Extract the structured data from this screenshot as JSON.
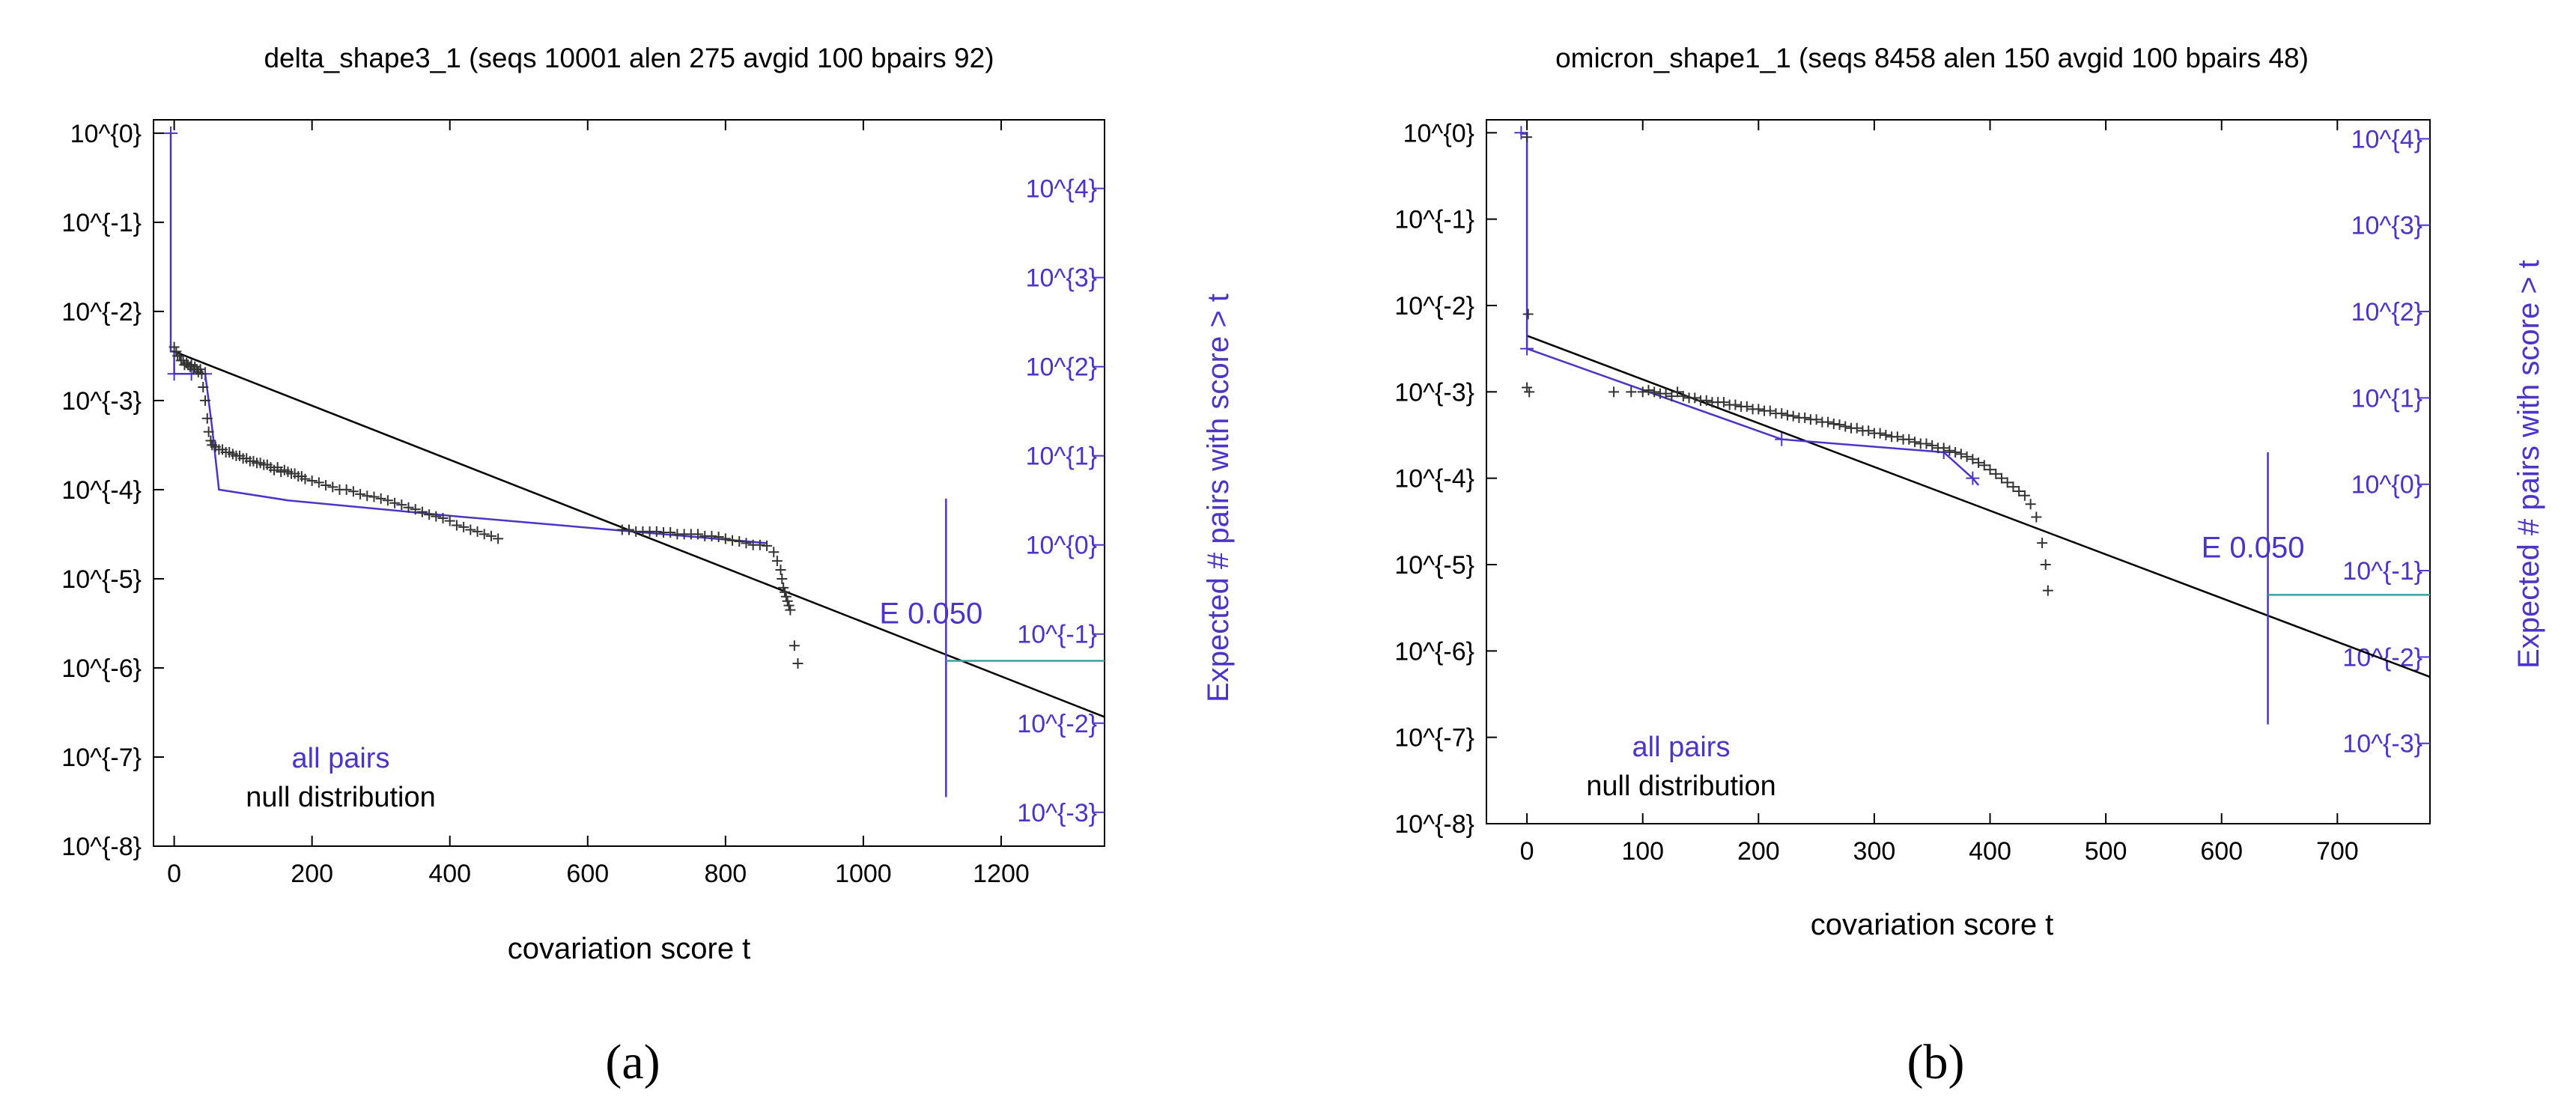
{
  "chart_data": [
    {
      "type": "scatter",
      "panel": "(a)",
      "title": "delta_shape3_1 (seqs 10001 alen 275 avgid 100 bpairs 92)",
      "xlabel": "covariation score t",
      "ylabel_right": "Expected # pairs with score > t",
      "xlim": [
        -30,
        1350
      ],
      "ylim_exp": [
        -8,
        0.15
      ],
      "x_ticks": [
        {
          "value": 0,
          "label": "0"
        },
        {
          "value": 200,
          "label": "200"
        },
        {
          "value": 400,
          "label": "400"
        },
        {
          "value": 600,
          "label": "600"
        },
        {
          "value": 800,
          "label": "800"
        },
        {
          "value": 1000,
          "label": "1000"
        },
        {
          "value": 1200,
          "label": "1200"
        }
      ],
      "y_ticks_left": [
        {
          "value": 0,
          "label": "10^{0}"
        },
        {
          "value": -1,
          "label": "10^{-1}"
        },
        {
          "value": -2,
          "label": "10^{-2}"
        },
        {
          "value": -3,
          "label": "10^{-3}"
        },
        {
          "value": -4,
          "label": "10^{-4}"
        },
        {
          "value": -5,
          "label": "10^{-5}"
        },
        {
          "value": -6,
          "label": "10^{-6}"
        },
        {
          "value": -7,
          "label": "10^{-7}"
        },
        {
          "value": -8,
          "label": "10^{-8}"
        }
      ],
      "y_ticks_right": [
        {
          "value": -0.62,
          "label": "10^{4}"
        },
        {
          "value": -1.62,
          "label": "10^{3}"
        },
        {
          "value": -2.62,
          "label": "10^{2}"
        },
        {
          "value": -3.62,
          "label": "10^{1}"
        },
        {
          "value": -4.62,
          "label": "10^{0}"
        },
        {
          "value": -5.62,
          "label": "10^{-1}"
        },
        {
          "value": -6.62,
          "label": "10^{-2}"
        },
        {
          "value": -7.62,
          "label": "10^{-3}"
        }
      ],
      "legend": {
        "all": "all pairs",
        "null": "null distribution"
      },
      "null_fit_line": {
        "x": [
          0,
          1350
        ],
        "y": [
          -2.45,
          -6.55
        ]
      },
      "all_pairs_curve": {
        "x": [
          -5,
          -5,
          0,
          0,
          15,
          35,
          45,
          55,
          65,
          165,
          410,
          860
        ],
        "y": [
          0,
          -2.45,
          -2.45,
          -2.7,
          -2.7,
          -2.7,
          -2.7,
          -3.3,
          -4.0,
          -4.12,
          -4.3,
          -4.6
        ]
      },
      "all_pairs_marks": {
        "x": [
          -5,
          0,
          25,
          45
        ],
        "y": [
          0,
          -2.7,
          -2.7,
          -2.7
        ]
      },
      "null_points": {
        "x": [
          0,
          3,
          5,
          8,
          10,
          13,
          15,
          18,
          20,
          23,
          25,
          28,
          30,
          33,
          35,
          38,
          40,
          42,
          45,
          48,
          50,
          53,
          55,
          60,
          65,
          70,
          75,
          80,
          85,
          90,
          95,
          100,
          105,
          110,
          115,
          120,
          125,
          130,
          135,
          140,
          145,
          150,
          155,
          160,
          165,
          170,
          175,
          180,
          185,
          190,
          200,
          210,
          220,
          230,
          240,
          250,
          260,
          270,
          280,
          290,
          300,
          310,
          320,
          330,
          340,
          350,
          360,
          370,
          380,
          390,
          400,
          410,
          420,
          430,
          440,
          450,
          460,
          470,
          650,
          660,
          670,
          680,
          690,
          700,
          710,
          720,
          730,
          740,
          750,
          760,
          770,
          780,
          790,
          800,
          810,
          820,
          830,
          840,
          850,
          860,
          870,
          875,
          880,
          882,
          884,
          886,
          888,
          890,
          892,
          894,
          900,
          905
        ],
        "y": [
          -2.4,
          -2.45,
          -2.5,
          -2.5,
          -2.55,
          -2.55,
          -2.6,
          -2.58,
          -2.6,
          -2.62,
          -2.6,
          -2.65,
          -2.62,
          -2.65,
          -2.68,
          -2.65,
          -2.7,
          -2.85,
          -3.0,
          -3.2,
          -3.35,
          -3.45,
          -3.5,
          -3.52,
          -3.55,
          -3.55,
          -3.58,
          -3.58,
          -3.6,
          -3.62,
          -3.62,
          -3.65,
          -3.65,
          -3.68,
          -3.68,
          -3.7,
          -3.7,
          -3.72,
          -3.72,
          -3.75,
          -3.78,
          -3.75,
          -3.8,
          -3.78,
          -3.8,
          -3.82,
          -3.82,
          -3.85,
          -3.85,
          -3.88,
          -3.9,
          -3.92,
          -3.95,
          -3.97,
          -4.0,
          -4.0,
          -4.02,
          -4.05,
          -4.07,
          -4.08,
          -4.1,
          -4.12,
          -4.15,
          -4.17,
          -4.2,
          -4.22,
          -4.25,
          -4.28,
          -4.3,
          -4.32,
          -4.35,
          -4.4,
          -4.42,
          -4.45,
          -4.47,
          -4.5,
          -4.52,
          -4.55,
          -4.45,
          -4.45,
          -4.47,
          -4.47,
          -4.47,
          -4.47,
          -4.48,
          -4.48,
          -4.5,
          -4.5,
          -4.5,
          -4.5,
          -4.52,
          -4.52,
          -4.53,
          -4.55,
          -4.57,
          -4.58,
          -4.6,
          -4.62,
          -4.62,
          -4.63,
          -4.7,
          -4.8,
          -4.9,
          -5.0,
          -5.1,
          -5.15,
          -5.2,
          -5.25,
          -5.3,
          -5.35,
          -5.75,
          -5.95
        ]
      },
      "threshold": {
        "label": "E 0.050",
        "x": 1120,
        "y": -5.92,
        "y_span": [
          -4.1,
          -7.45
        ]
      }
    },
    {
      "type": "scatter",
      "panel": "(b)",
      "title": "omicron_shape1_1 (seqs 8458 alen 150 avgid 100 bpairs 48)",
      "xlabel": "covariation score t",
      "ylabel_right": "Expected # pairs with score > t",
      "xlim": [
        -35,
        780
      ],
      "ylim_exp": [
        -8,
        0.15
      ],
      "x_ticks": [
        {
          "value": 0,
          "label": "0"
        },
        {
          "value": 100,
          "label": "100"
        },
        {
          "value": 200,
          "label": "200"
        },
        {
          "value": 300,
          "label": "300"
        },
        {
          "value": 400,
          "label": "400"
        },
        {
          "value": 500,
          "label": "500"
        },
        {
          "value": 600,
          "label": "600"
        },
        {
          "value": 700,
          "label": "700"
        }
      ],
      "y_ticks_left": [
        {
          "value": 0,
          "label": "10^{0}"
        },
        {
          "value": -1,
          "label": "10^{-1}"
        },
        {
          "value": -2,
          "label": "10^{-2}"
        },
        {
          "value": -3,
          "label": "10^{-3}"
        },
        {
          "value": -4,
          "label": "10^{-4}"
        },
        {
          "value": -5,
          "label": "10^{-5}"
        },
        {
          "value": -6,
          "label": "10^{-6}"
        },
        {
          "value": -7,
          "label": "10^{-7}"
        },
        {
          "value": -8,
          "label": "10^{-8}"
        }
      ],
      "y_ticks_right": [
        {
          "value": -0.07,
          "label": "10^{4}"
        },
        {
          "value": -1.07,
          "label": "10^{3}"
        },
        {
          "value": -2.07,
          "label": "10^{2}"
        },
        {
          "value": -3.07,
          "label": "10^{1}"
        },
        {
          "value": -4.07,
          "label": "10^{0}"
        },
        {
          "value": -5.07,
          "label": "10^{-1}"
        },
        {
          "value": -6.07,
          "label": "10^{-2}"
        },
        {
          "value": -7.07,
          "label": "10^{-3}"
        }
      ],
      "legend": {
        "all": "all pairs",
        "null": "null distribution"
      },
      "null_fit_line": {
        "x": [
          0,
          780
        ],
        "y": [
          -2.35,
          -6.3
        ]
      },
      "all_pairs_curve": {
        "x": [
          -5,
          -5,
          0,
          0,
          220,
          360,
          385,
          390
        ],
        "y": [
          0,
          -0.01,
          -0.01,
          -2.5,
          -3.55,
          -3.7,
          -4.0,
          -4.08
        ]
      },
      "all_pairs_marks": {
        "x": [
          -5,
          0,
          220,
          360,
          385
        ],
        "y": [
          0,
          -2.5,
          -3.55,
          -3.7,
          -4.0
        ]
      },
      "null_points": {
        "x": [
          0,
          1,
          0,
          2,
          75,
          90,
          100,
          105,
          110,
          115,
          120,
          125,
          130,
          135,
          140,
          145,
          150,
          155,
          160,
          165,
          170,
          175,
          180,
          185,
          190,
          195,
          200,
          205,
          210,
          215,
          220,
          225,
          230,
          235,
          240,
          245,
          250,
          255,
          260,
          265,
          270,
          275,
          280,
          285,
          290,
          295,
          300,
          305,
          310,
          315,
          320,
          325,
          330,
          335,
          340,
          345,
          350,
          355,
          360,
          365,
          370,
          375,
          380,
          385,
          390,
          395,
          400,
          405,
          410,
          415,
          420,
          425,
          430,
          435,
          440,
          445,
          448,
          450
        ],
        "y": [
          -0.05,
          -2.1,
          -2.95,
          -3.0,
          -3.0,
          -3.0,
          -3.0,
          -2.98,
          -3.0,
          -3.02,
          -3.02,
          -3.05,
          -3.0,
          -3.05,
          -3.07,
          -3.07,
          -3.1,
          -3.1,
          -3.12,
          -3.12,
          -3.12,
          -3.15,
          -3.15,
          -3.17,
          -3.17,
          -3.2,
          -3.2,
          -3.22,
          -3.22,
          -3.25,
          -3.25,
          -3.27,
          -3.28,
          -3.3,
          -3.3,
          -3.32,
          -3.32,
          -3.35,
          -3.35,
          -3.37,
          -3.38,
          -3.4,
          -3.42,
          -3.42,
          -3.45,
          -3.45,
          -3.48,
          -3.48,
          -3.5,
          -3.52,
          -3.52,
          -3.55,
          -3.55,
          -3.58,
          -3.6,
          -3.6,
          -3.62,
          -3.65,
          -3.65,
          -3.68,
          -3.7,
          -3.72,
          -3.75,
          -3.78,
          -3.82,
          -3.85,
          -3.9,
          -3.95,
          -4.0,
          -4.05,
          -4.1,
          -4.15,
          -4.2,
          -4.3,
          -4.45,
          -4.75,
          -5.0,
          -5.3
        ]
      },
      "threshold": {
        "label": "E 0.050",
        "x": 640,
        "y": -5.35,
        "y_span": [
          -3.7,
          -6.85
        ]
      }
    }
  ],
  "panel_labels": {
    "a": "(a)",
    "b": "(b)"
  }
}
